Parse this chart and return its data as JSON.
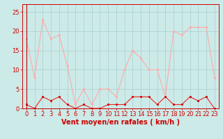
{
  "hours": [
    0,
    1,
    2,
    3,
    4,
    5,
    6,
    7,
    8,
    9,
    10,
    11,
    12,
    13,
    14,
    15,
    16,
    17,
    18,
    19,
    20,
    21,
    22,
    23
  ],
  "wind_avg": [
    1,
    0,
    3,
    2,
    3,
    1,
    0,
    1,
    0,
    0,
    1,
    1,
    1,
    3,
    3,
    3,
    1,
    3,
    1,
    1,
    3,
    2,
    3,
    0
  ],
  "wind_gust": [
    18,
    8,
    23,
    18,
    19,
    11,
    1,
    5,
    1,
    5,
    5,
    3,
    10,
    15,
    13,
    10,
    10,
    3,
    20,
    19,
    21,
    21,
    21,
    8
  ],
  "bg_color": "#cceae8",
  "grid_color": "#aacccc",
  "line_avg_color": "#ee2222",
  "line_gust_color": "#ffaaaa",
  "marker_avg_color": "#cc0000",
  "marker_gust_color": "#ffaaaa",
  "xlabel": "Vent moyen/en rafales ( km/h )",
  "ylabel_ticks": [
    0,
    5,
    10,
    15,
    20,
    25
  ],
  "ylim": [
    0,
    27
  ],
  "xlim": [
    -0.5,
    23.5
  ],
  "xlabel_fontsize": 7,
  "tick_fontsize": 6,
  "spine_color": "#cc0000"
}
